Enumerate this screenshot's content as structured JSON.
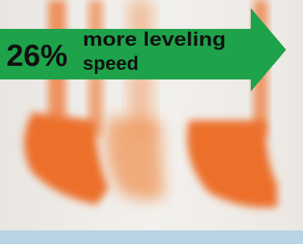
{
  "banner": {
    "figure": "26%",
    "lines": [
      "more leveling",
      "speed"
    ]
  }
}
